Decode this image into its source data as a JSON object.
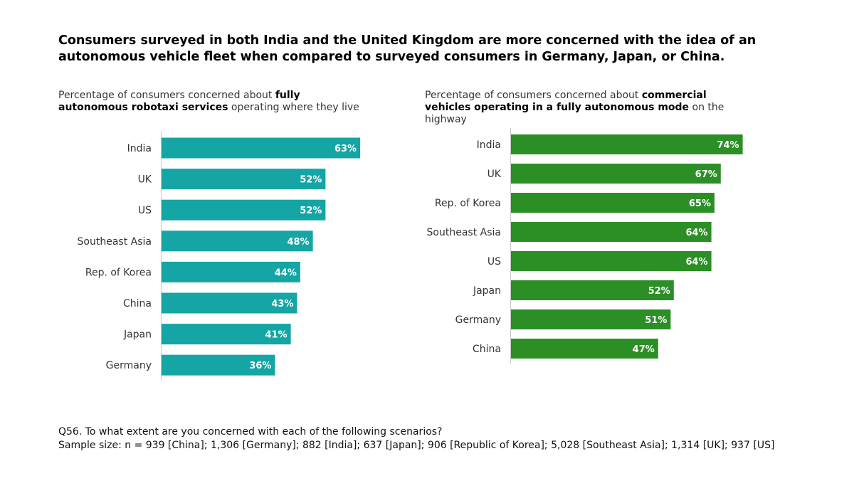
{
  "headline": "Consumers surveyed in both India and the United Kingdom are more concerned with the idea of an autonomous vehicle fleet when compared to surveyed consumers in Germany, Japan, or China.",
  "colors": {
    "left_bars": "#15a5a5",
    "right_bars": "#2b8f25",
    "axis": "#c8c8c8",
    "category_text": "#333333",
    "value_text": "#ffffff"
  },
  "chart_data": [
    {
      "type": "bar",
      "orientation": "horizontal",
      "subtitle": {
        "pre": "Percentage of consumers concerned about ",
        "bold": "fully autonomous robotaxi services",
        "post": " operating where they live"
      },
      "categories": [
        "India",
        "UK",
        "US",
        "Southeast Asia",
        "Rep. of Korea",
        "China",
        "Japan",
        "Germany"
      ],
      "values": [
        63,
        52,
        52,
        48,
        44,
        43,
        41,
        36
      ],
      "value_labels": [
        "63%",
        "52%",
        "52%",
        "48%",
        "44%",
        "43%",
        "41%",
        "36%"
      ],
      "xlim": [
        0,
        100
      ],
      "grid": false,
      "legend": "none"
    },
    {
      "type": "bar",
      "orientation": "horizontal",
      "subtitle": {
        "pre": "Percentage of consumers concerned about ",
        "bold": "commercial vehicles operating in a fully autonomous mode",
        "post": " on the highway"
      },
      "categories": [
        "India",
        "UK",
        "Rep. of Korea",
        "Southeast Asia",
        "US",
        "Japan",
        "Germany",
        "China"
      ],
      "values": [
        74,
        67,
        65,
        64,
        64,
        52,
        51,
        47
      ],
      "value_labels": [
        "74%",
        "67%",
        "65%",
        "64%",
        "64%",
        "52%",
        "51%",
        "47%"
      ],
      "xlim": [
        0,
        100
      ],
      "grid": false,
      "legend": "none"
    }
  ],
  "footnote": {
    "question": "Q56. To what extent are you concerned with each of the following scenarios?",
    "sample": "Sample size: n = 939 [China]; 1,306 [Germany]; 882 [India]; 637 [Japan]; 906 [Republic of Korea]; 5,028 [Southeast Asia]; 1,314 [UK]; 937 [US]"
  }
}
